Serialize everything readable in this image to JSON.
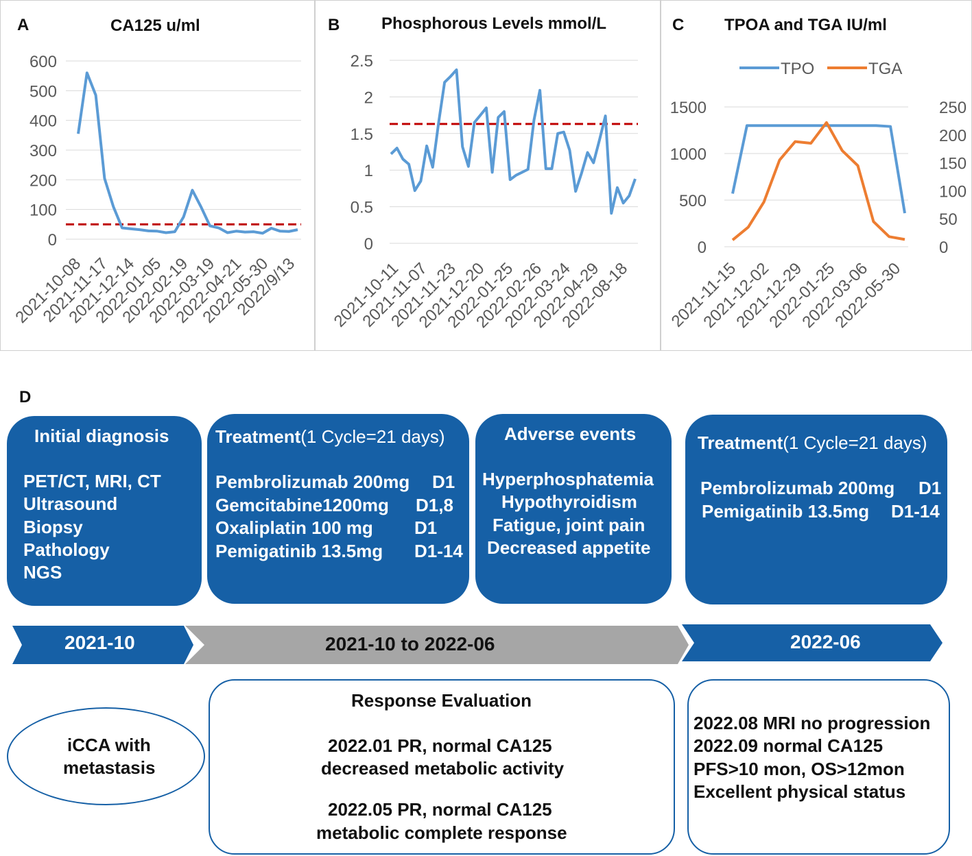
{
  "colors": {
    "primary_blue": "#1660a6",
    "line_blue": "#5b9bd5",
    "orange": "#ed7d31",
    "ref_red": "#c00000",
    "arrow_gray": "#a6a6a6"
  },
  "chart_data": [
    {
      "panel": "A",
      "type": "line",
      "title": "CA125 u/ml",
      "ylim": [
        0,
        600
      ],
      "yticks": [
        "600",
        "500",
        "400",
        "300",
        "200",
        "100",
        "0"
      ],
      "x_tick_labels": [
        "2021-10-08",
        "2021-11-17",
        "2021-12-14",
        "2022-01-05",
        "2022-02-19",
        "2022-03-19",
        "2022-04-21",
        "2022-05-30",
        "2022/9/13"
      ],
      "reference_line": 50,
      "series": [
        {
          "name": "CA125",
          "values": [
            355,
            560,
            485,
            205,
            110,
            38,
            35,
            32,
            28,
            27,
            22,
            25,
            75,
            165,
            108,
            45,
            38,
            22,
            27,
            24,
            25,
            20,
            37,
            27,
            26,
            32
          ]
        }
      ]
    },
    {
      "panel": "B",
      "type": "line",
      "title": "Phosphorous Levels mmol/L",
      "ylim": [
        0,
        2.5
      ],
      "yticks": [
        "2.5",
        "2",
        "1.5",
        "1",
        "0.5",
        "0"
      ],
      "x_tick_labels": [
        "2021-10-11",
        "2021-11-07",
        "2021-11-23",
        "2021-12-20",
        "2022-01-25",
        "2022-02-26",
        "2022-03-24",
        "2022-04-29",
        "2022-08-18"
      ],
      "reference_line": 1.63,
      "series": [
        {
          "name": "Phosphorus",
          "values": [
            1.22,
            1.3,
            1.15,
            1.08,
            0.72,
            0.85,
            1.33,
            1.04,
            1.65,
            2.2,
            2.28,
            2.37,
            1.32,
            1.05,
            1.65,
            1.75,
            1.85,
            0.97,
            1.72,
            1.8,
            0.87,
            0.93,
            0.97,
            1.01,
            1.68,
            2.09,
            1.02,
            1.02,
            1.5,
            1.52,
            1.27,
            0.71,
            0.96,
            1.24,
            1.1,
            1.41,
            1.74,
            0.41,
            0.76,
            0.55,
            0.65,
            0.88
          ]
        }
      ]
    },
    {
      "panel": "C",
      "type": "line",
      "title": "TPOA and TGA IU/ml",
      "legend": [
        "TPO",
        "TGA"
      ],
      "legend_position": "top",
      "ylim_left": [
        0,
        1500
      ],
      "ylim_right": [
        0,
        250
      ],
      "yticks_left": [
        "1500",
        "1000",
        "500",
        "0"
      ],
      "yticks_right": [
        "250",
        "200",
        "150",
        "100",
        "50",
        "0"
      ],
      "x_tick_labels": [
        "2021-11-15",
        "2021-12-02",
        "2021-12-29",
        "2022-01-25",
        "2022-03-06",
        "2022-05-30"
      ],
      "series": [
        {
          "name": "TPO",
          "axis": "left",
          "values": [
            570,
            1300,
            1300,
            1300,
            1300,
            1300,
            1300,
            1300,
            1300,
            1300,
            1300,
            1290,
            360
          ]
        },
        {
          "name": "TGA",
          "axis": "right",
          "values": [
            12,
            35,
            80,
            155,
            188,
            185,
            222,
            172,
            145,
            45,
            18,
            13
          ]
        }
      ]
    }
  ],
  "section_d": {
    "letter": "D",
    "boxes": {
      "diagnosis": {
        "title": "Initial diagnosis",
        "lines": [
          "PET/CT, MRI, CT",
          "Ultrasound",
          "Biopsy",
          "Pathology",
          "NGS"
        ]
      },
      "treatment1": {
        "title_bold": "Treatment",
        "title_rest": "(1 Cycle=21 days)",
        "rows": [
          {
            "drug": "Pembrolizumab 200mg",
            "day": "D1"
          },
          {
            "drug": "Gemcitabine1200mg",
            "day": "D1,8"
          },
          {
            "drug": "Oxaliplatin 100 mg",
            "day": "D1"
          },
          {
            "drug": "Pemigatinib 13.5mg",
            "day": "D1-14"
          }
        ]
      },
      "adverse": {
        "title": "Adverse events",
        "lines": [
          "Hyperphosphatemia",
          "Hypothyroidism",
          "Fatigue, joint pain",
          "Decreased appetite"
        ]
      },
      "treatment2": {
        "title_bold": "Treatment",
        "title_rest": "(1 Cycle=21 days)",
        "rows": [
          {
            "drug": "Pembrolizumab 200mg",
            "day": "D1"
          },
          {
            "drug": "Pemigatinib 13.5mg",
            "day": "D1-14"
          }
        ]
      }
    },
    "timeline": {
      "start": "2021-10",
      "middle": "2021-10  to  2022-06",
      "end": "2022-06"
    },
    "outcomes": {
      "initial": [
        "iCCA with",
        "metastasis"
      ],
      "response": {
        "title": "Response  Evaluation",
        "block1": [
          "2022.01  PR, normal CA125",
          "decreased metabolic activity"
        ],
        "block2": [
          "2022.05  PR, normal CA125",
          "metabolic complete response"
        ]
      },
      "final": [
        "2022.08 MRI no progression",
        "2022.09  normal CA125",
        "PFS>10 mon, OS>12mon",
        "Excellent physical status"
      ]
    }
  }
}
